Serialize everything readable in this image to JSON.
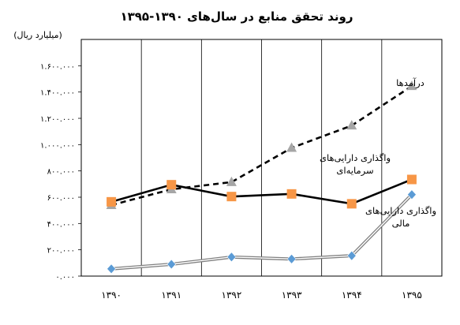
{
  "chart_data": {
    "type": "line",
    "title": "روند تحقق منابع در سال‌های ۱۳۹۰-۱۳۹۵",
    "ylabel": "(میلیارد ریال)",
    "xlabel": "",
    "categories": [
      "۱۳۹۰",
      "۱۳۹۱",
      "۱۳۹۲",
      "۱۳۹۳",
      "۱۳۹۴",
      "۱۳۹۵"
    ],
    "ylim": [
      0,
      1800000
    ],
    "y_ticks": [
      0,
      200000,
      400000,
      600000,
      800000,
      1000000,
      1200000,
      1400000,
      1600000
    ],
    "y_tick_labels": [
      "۰.۰۰۰",
      "۲۰۰.۰۰۰",
      "۴۰۰.۰۰۰",
      "۶۰۰.۰۰۰",
      "۸۰۰.۰۰۰",
      "۱.۰۰۰.۰۰۰",
      "۱.۲۰۰.۰۰۰",
      "۱.۴۰۰.۰۰۰",
      "۱.۶۰۰.۰۰۰"
    ],
    "grid": "vertical",
    "legend": "inline-labels",
    "series": [
      {
        "name": "درآمدها",
        "values": [
          540000,
          660000,
          715000,
          975000,
          1145000,
          1445000
        ],
        "color": "#000000",
        "line_style": "dashed",
        "marker": "triangle",
        "marker_color": "#a6a6a6"
      },
      {
        "name": "واگذاری دارایی‌های سرمایه‌ای",
        "values": [
          565000,
          695000,
          605000,
          625000,
          550000,
          735000
        ],
        "color": "#000000",
        "line_style": "solid",
        "marker": "square",
        "marker_color": "#f79646"
      },
      {
        "name": "واگذاری دارایی‌های مالی",
        "values": [
          55000,
          90000,
          145000,
          130000,
          155000,
          620000
        ],
        "color": "#808080",
        "line_style": "double",
        "marker": "diamond",
        "marker_color": "#5b9bd5"
      }
    ],
    "series_labels": [
      {
        "lines": [
          "درآمدها"
        ]
      },
      {
        "lines": [
          "واگذاری دارایی‌های",
          "سرمایه‌ای"
        ]
      },
      {
        "lines": [
          "واگذاری دارایی‌های",
          "مالی"
        ]
      }
    ]
  }
}
